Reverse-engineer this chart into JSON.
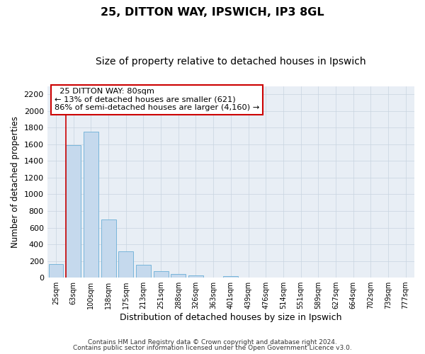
{
  "title_line1": "25, DITTON WAY, IPSWICH, IP3 8GL",
  "title_line2": "Size of property relative to detached houses in Ipswich",
  "xlabel": "Distribution of detached houses by size in Ipswich",
  "ylabel": "Number of detached properties",
  "bar_labels": [
    "25sqm",
    "63sqm",
    "100sqm",
    "138sqm",
    "175sqm",
    "213sqm",
    "251sqm",
    "288sqm",
    "326sqm",
    "363sqm",
    "401sqm",
    "439sqm",
    "476sqm",
    "514sqm",
    "551sqm",
    "589sqm",
    "627sqm",
    "664sqm",
    "702sqm",
    "739sqm",
    "777sqm"
  ],
  "bar_values": [
    160,
    1590,
    1750,
    700,
    315,
    155,
    80,
    45,
    30,
    0,
    20,
    0,
    0,
    0,
    0,
    0,
    0,
    0,
    0,
    0,
    0
  ],
  "bar_color": "#c5d9ed",
  "bar_edge_color": "#6aaed6",
  "annotation_title": "25 DITTON WAY: 80sqm",
  "annotation_line1": "← 13% of detached houses are smaller (621)",
  "annotation_line2": "86% of semi-detached houses are larger (4,160) →",
  "annotation_box_color": "#ffffff",
  "annotation_box_edge": "#cc0000",
  "ylim": [
    0,
    2300
  ],
  "yticks": [
    0,
    200,
    400,
    600,
    800,
    1000,
    1200,
    1400,
    1600,
    1800,
    2000,
    2200
  ],
  "footer_line1": "Contains HM Land Registry data © Crown copyright and database right 2024.",
  "footer_line2": "Contains public sector information licensed under the Open Government Licence v3.0.",
  "bg_color": "#ffffff",
  "plot_bg_color": "#e8eef5",
  "grid_color": "#c8d4e0"
}
